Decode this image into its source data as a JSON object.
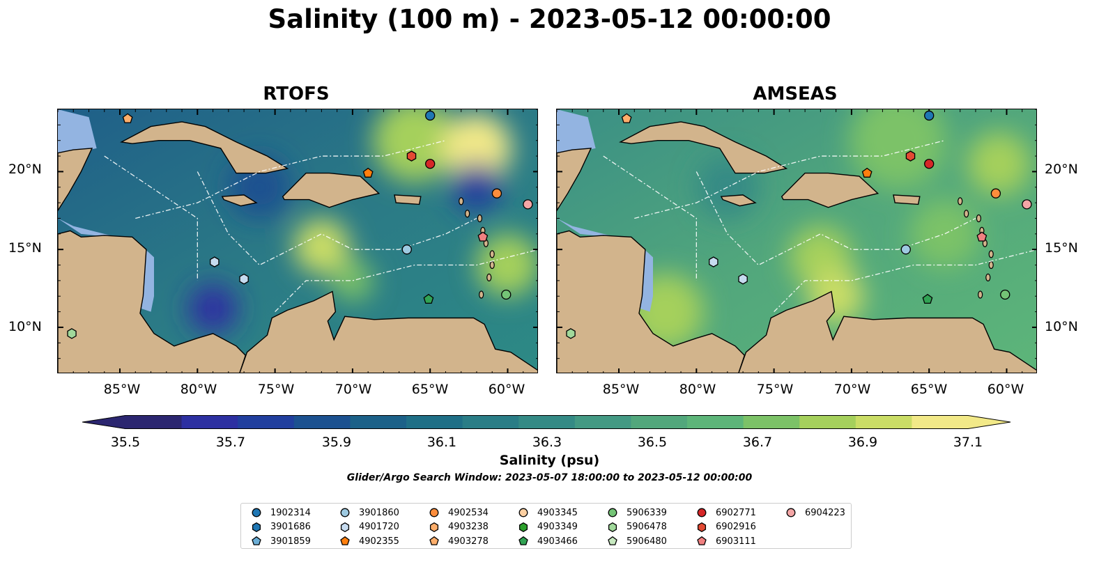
{
  "title": "Salinity (100 m) - 2023-05-12 00:00:00",
  "panels": [
    {
      "title": "RTOFS"
    },
    {
      "title": "AMSEAS"
    }
  ],
  "axes": {
    "lon_ticks": [
      "85°W",
      "80°W",
      "75°W",
      "70°W",
      "65°W",
      "60°W"
    ],
    "lat_ticks": [
      "20°N",
      "15°N",
      "10°N"
    ],
    "lon_range": [
      -89,
      -58
    ],
    "lat_range": [
      7,
      24
    ]
  },
  "colorbar": {
    "label": "Salinity (psu)",
    "ticks": [
      "35.5",
      "35.7",
      "35.9",
      "36.1",
      "36.3",
      "36.5",
      "36.7",
      "36.9",
      "37.1"
    ],
    "range": [
      35.5,
      37.1
    ],
    "extend": "both",
    "colors": [
      "#2b2670",
      "#2d30a1",
      "#213f9e",
      "#1c5190",
      "#1c6188",
      "#1f6f86",
      "#2a7d86",
      "#348a85",
      "#439983",
      "#52a77c",
      "#5db579",
      "#7cc267",
      "#a5d05c",
      "#cadd66",
      "#f2e988"
    ]
  },
  "search_window": "Glider/Argo Search Window: 2023-05-07 18:00:00 to 2023-05-12 00:00:00",
  "colors": {
    "land": "#d2b48c",
    "shallow": "#93b4e1",
    "coast": "#000000"
  },
  "floats": [
    {
      "id": "1902314",
      "marker": "circle",
      "color": "#1f77b4",
      "lon": -65.0,
      "lat": 23.6
    },
    {
      "id": "3901686",
      "marker": "hexagon",
      "color": "#1f77b4",
      "lon": null,
      "lat": null
    },
    {
      "id": "3901859",
      "marker": "pentagon",
      "color": "#6baed6",
      "lon": null,
      "lat": null
    },
    {
      "id": "3901860",
      "marker": "circle",
      "color": "#9ecae1",
      "lon": -66.5,
      "lat": 15.0
    },
    {
      "id": "4901720",
      "marker": "hexagon",
      "color": "#c6dbef",
      "lon": -78.9,
      "lat": 14.2
    },
    {
      "id": "4902355",
      "marker": "pentagon",
      "color": "#ff7f0e",
      "lon": null,
      "lat": null
    },
    {
      "id": "4902534",
      "marker": "circle",
      "color": "#fd8d3c",
      "lon": -60.7,
      "lat": 18.6
    },
    {
      "id": "4903238",
      "marker": "hexagon",
      "color": "#fdae6b",
      "lon": null,
      "lat": null
    },
    {
      "id": "4903278",
      "marker": "pentagon",
      "color": "#fdae6b",
      "lon": -84.5,
      "lat": 23.4
    },
    {
      "id": "4903345",
      "marker": "circle",
      "color": "#fdd0a2",
      "lon": null,
      "lat": null
    },
    {
      "id": "4903349",
      "marker": "hexagon",
      "color": "#2ca02c",
      "lon": null,
      "lat": null
    },
    {
      "id": "4903466",
      "marker": "pentagon",
      "color": "#31a354",
      "lon": -65.1,
      "lat": 11.8
    },
    {
      "id": "5906339",
      "marker": "circle",
      "color": "#74c476",
      "lon": -60.1,
      "lat": 12.1
    },
    {
      "id": "5906478",
      "marker": "hexagon",
      "color": "#a1d99b",
      "lon": -88.1,
      "lat": 9.6
    },
    {
      "id": "5906480",
      "marker": "pentagon",
      "color": "#c7e9c0",
      "lon": null,
      "lat": null
    },
    {
      "id": "6902771",
      "marker": "circle",
      "color": "#d62728",
      "lon": -65.0,
      "lat": 20.5
    },
    {
      "id": "6902916",
      "marker": "hexagon",
      "color": "#e34a33",
      "lon": -66.2,
      "lat": 21.0
    },
    {
      "id": "6903111",
      "marker": "pentagon",
      "color": "#f08080",
      "lon": -61.6,
      "lat": 15.8
    },
    {
      "id": "6904223",
      "marker": "circle",
      "color": "#f4a6a6",
      "lon": -58.7,
      "lat": 17.9
    }
  ],
  "extra_markers": [
    {
      "marker": "pentagon",
      "color": "#ff7f0e",
      "lon": -69.0,
      "lat": 19.9
    },
    {
      "marker": "hexagon",
      "color": "#c6dbef",
      "lon": -77.0,
      "lat": 13.1
    }
  ]
}
